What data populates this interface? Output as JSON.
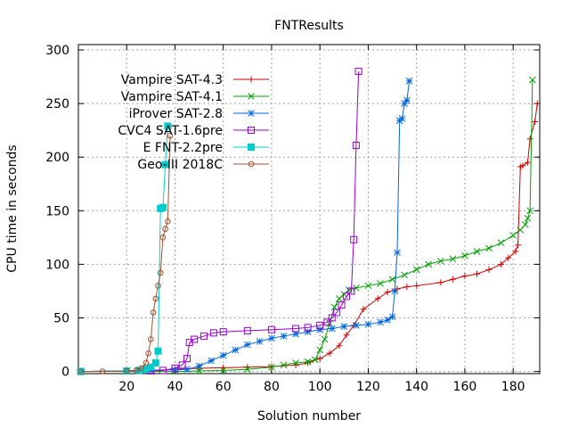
{
  "chart_data": {
    "type": "line",
    "title": "FNTResults",
    "xlabel": "Solution number",
    "ylabel": "CPU time in seconds",
    "xlim": [
      0,
      191
    ],
    "ylim": [
      -2,
      305
    ],
    "xticks": [
      20,
      40,
      60,
      80,
      100,
      120,
      140,
      160,
      180
    ],
    "yticks": [
      0,
      50,
      100,
      150,
      200,
      250,
      300
    ],
    "grid": true,
    "legend_position": "top-left",
    "series": [
      {
        "name": "Vampire SAT-4.3",
        "color": "#cc0000",
        "marker": "plus",
        "points": [
          [
            1,
            0
          ],
          [
            20,
            0.5
          ],
          [
            30,
            1
          ],
          [
            40,
            2
          ],
          [
            50,
            3
          ],
          [
            60,
            3.5
          ],
          [
            70,
            4
          ],
          [
            80,
            4.5
          ],
          [
            90,
            6
          ],
          [
            95,
            8
          ],
          [
            100,
            12
          ],
          [
            104,
            17
          ],
          [
            108,
            24
          ],
          [
            111,
            34
          ],
          [
            114,
            43
          ],
          [
            118,
            58
          ],
          [
            124,
            68
          ],
          [
            128,
            74
          ],
          [
            132,
            77
          ],
          [
            136,
            79
          ],
          [
            140,
            80
          ],
          [
            150,
            83
          ],
          [
            155,
            86
          ],
          [
            160,
            89
          ],
          [
            165,
            91
          ],
          [
            170,
            95
          ],
          [
            175,
            100
          ],
          [
            178,
            106
          ],
          [
            181,
            112
          ],
          [
            182,
            118
          ],
          [
            183,
            191
          ],
          [
            184,
            192
          ],
          [
            186,
            195
          ],
          [
            187,
            217
          ],
          [
            189,
            233
          ],
          [
            190,
            250
          ]
        ]
      },
      {
        "name": "Vampire SAT-4.1",
        "color": "#00a000",
        "marker": "cross",
        "points": [
          [
            1,
            0
          ],
          [
            20,
            0
          ],
          [
            40,
            0
          ],
          [
            50,
            0.5
          ],
          [
            60,
            1
          ],
          [
            70,
            2
          ],
          [
            80,
            4
          ],
          [
            85,
            6
          ],
          [
            90,
            8
          ],
          [
            95,
            9
          ],
          [
            98,
            11
          ],
          [
            100,
            20
          ],
          [
            102,
            30
          ],
          [
            104,
            45
          ],
          [
            106,
            60
          ],
          [
            108,
            68
          ],
          [
            110,
            72
          ],
          [
            112,
            76
          ],
          [
            115,
            78
          ],
          [
            120,
            80
          ],
          [
            125,
            82
          ],
          [
            130,
            86
          ],
          [
            135,
            90
          ],
          [
            140,
            95
          ],
          [
            145,
            100
          ],
          [
            150,
            103
          ],
          [
            155,
            105
          ],
          [
            160,
            108
          ],
          [
            165,
            112
          ],
          [
            170,
            115
          ],
          [
            175,
            120
          ],
          [
            180,
            127
          ],
          [
            183,
            132
          ],
          [
            185,
            137
          ],
          [
            186,
            143
          ],
          [
            187,
            150
          ],
          [
            188,
            272
          ]
        ]
      },
      {
        "name": "iProver SAT-2.8",
        "color": "#0066dd",
        "marker": "asterisk",
        "points": [
          [
            1,
            0
          ],
          [
            20,
            0.5
          ],
          [
            30,
            1
          ],
          [
            40,
            1.5
          ],
          [
            45,
            2
          ],
          [
            50,
            5
          ],
          [
            55,
            10
          ],
          [
            60,
            15
          ],
          [
            65,
            20
          ],
          [
            70,
            25
          ],
          [
            75,
            28
          ],
          [
            80,
            31
          ],
          [
            85,
            33
          ],
          [
            90,
            35
          ],
          [
            95,
            37
          ],
          [
            100,
            39
          ],
          [
            105,
            40
          ],
          [
            110,
            42
          ],
          [
            115,
            43
          ],
          [
            120,
            44
          ],
          [
            125,
            46
          ],
          [
            128,
            48
          ],
          [
            130,
            51
          ],
          [
            131,
            75
          ],
          [
            132,
            111
          ],
          [
            133,
            234
          ],
          [
            134,
            236
          ],
          [
            135,
            250
          ],
          [
            136,
            253
          ],
          [
            137,
            271
          ]
        ]
      },
      {
        "name": "CVC4 SAT-1.6pre",
        "color": "#9900cc",
        "marker": "square",
        "points": [
          [
            1,
            0
          ],
          [
            30,
            0.5
          ],
          [
            35,
            1
          ],
          [
            40,
            3
          ],
          [
            43,
            6
          ],
          [
            45,
            12
          ],
          [
            46,
            27
          ],
          [
            48,
            30
          ],
          [
            52,
            33
          ],
          [
            56,
            36
          ],
          [
            60,
            37
          ],
          [
            70,
            38
          ],
          [
            80,
            39
          ],
          [
            90,
            40
          ],
          [
            95,
            41
          ],
          [
            100,
            43
          ],
          [
            103,
            46
          ],
          [
            105,
            50
          ],
          [
            107,
            55
          ],
          [
            109,
            62
          ],
          [
            111,
            70
          ],
          [
            113,
            75
          ],
          [
            114,
            123
          ],
          [
            115,
            211
          ],
          [
            116,
            280
          ]
        ]
      },
      {
        "name": "E FNT-2.2pre",
        "color": "#00cccc",
        "marker": "filled-square",
        "points": [
          [
            1,
            0
          ],
          [
            20,
            0.5
          ],
          [
            25,
            1
          ],
          [
            28,
            2
          ],
          [
            30,
            4
          ],
          [
            32,
            8
          ],
          [
            33,
            19
          ],
          [
            34,
            152
          ],
          [
            35,
            153
          ],
          [
            36,
            193
          ],
          [
            37,
            229
          ]
        ]
      },
      {
        "name": "Geo-III 2018C",
        "color": "#a0522d",
        "marker": "circle",
        "points": [
          [
            1,
            0
          ],
          [
            10,
            0
          ],
          [
            20,
            0.5
          ],
          [
            24,
            1
          ],
          [
            26,
            3
          ],
          [
            28,
            8
          ],
          [
            29,
            17
          ],
          [
            30,
            30
          ],
          [
            31,
            55
          ],
          [
            32,
            68
          ],
          [
            33,
            80
          ],
          [
            34,
            92
          ],
          [
            35,
            125
          ],
          [
            36,
            133
          ],
          [
            37,
            140
          ],
          [
            38,
            220
          ]
        ]
      }
    ]
  }
}
